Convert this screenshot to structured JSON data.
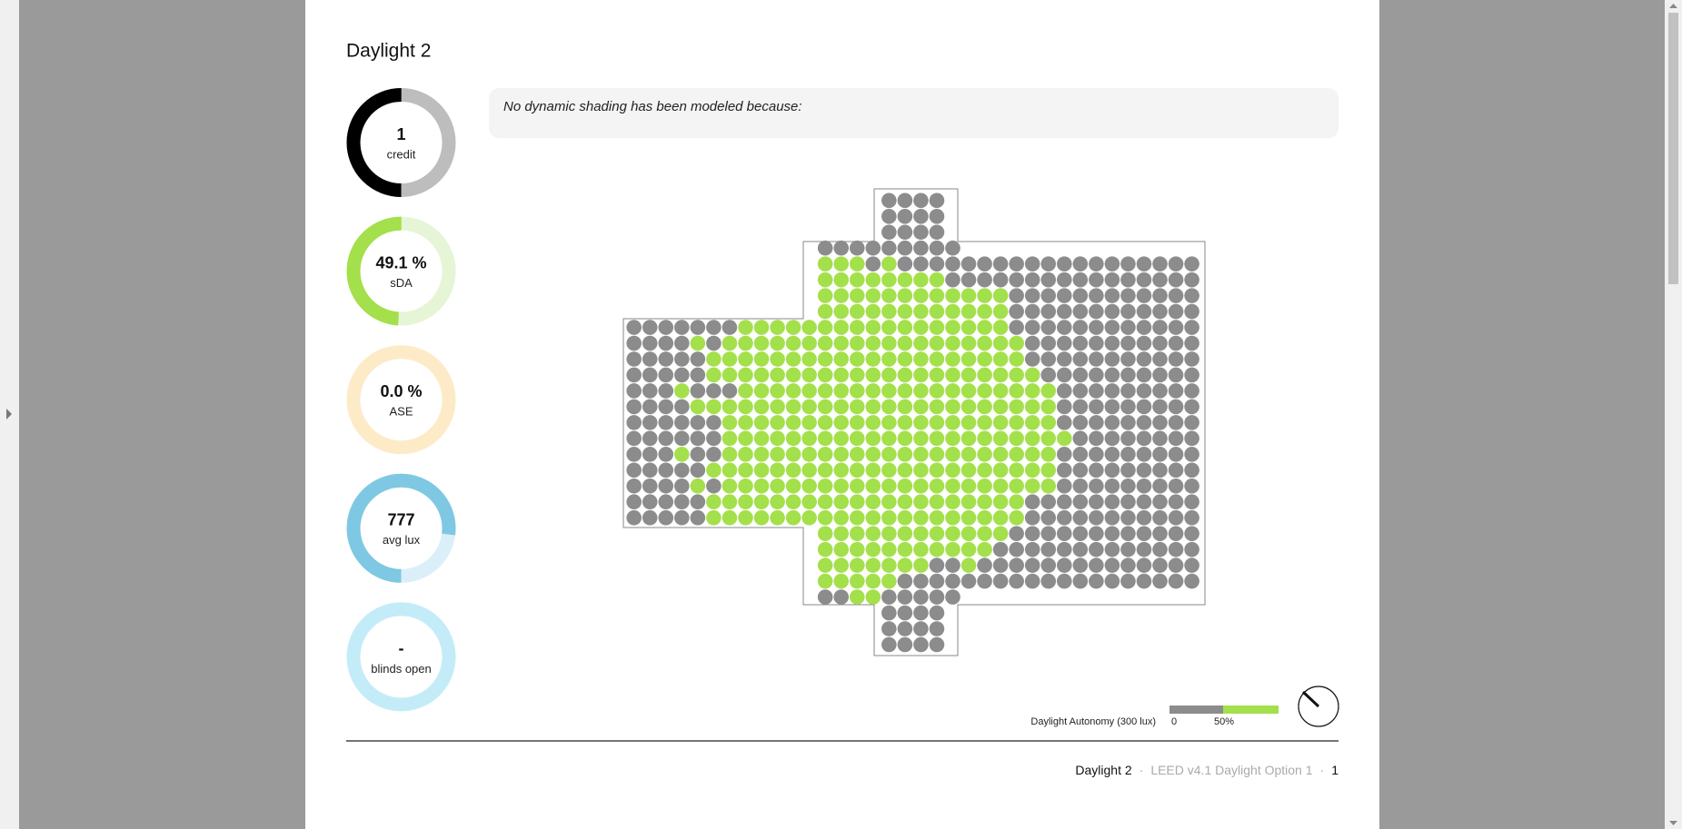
{
  "header": {
    "title": "Daylight 2"
  },
  "metrics": [
    {
      "value": "1",
      "label": "credit"
    },
    {
      "value": "49.1 %",
      "label": "sDA"
    },
    {
      "value": "0.0 %",
      "label": "ASE"
    },
    {
      "value": "777",
      "label": "avg lux"
    },
    {
      "value": "-",
      "label": "blinds open"
    }
  ],
  "note": "No dynamic shading has been modeled because:",
  "legend": {
    "title": "Daylight Autonomy (300 lux)",
    "min": "0",
    "mid": "50%"
  },
  "footer": {
    "section": "Daylight 2",
    "separator": "·",
    "standard": "LEED v4.1 Daylight Option 1",
    "page": "1"
  }
}
